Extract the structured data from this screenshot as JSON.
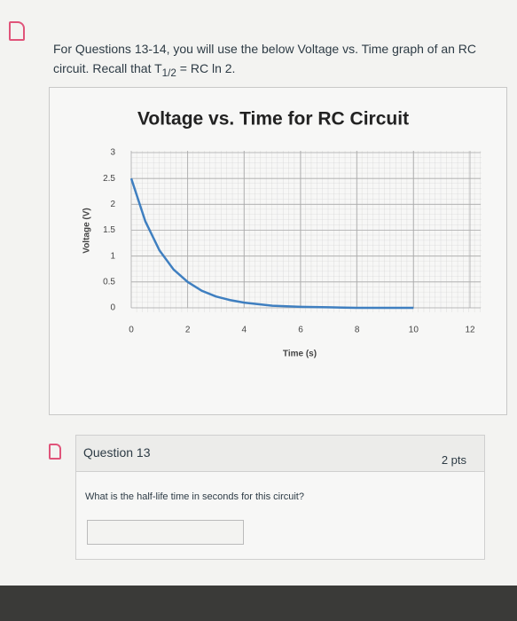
{
  "intro": {
    "text": "For Questions 13-14, you will use the below Voltage vs. Time graph of an RC circuit. Recall that T",
    "subscript": "1/2",
    "rest": "= RC ln 2."
  },
  "chart_data": {
    "type": "line",
    "title": "Voltage vs. Time for RC Circuit",
    "x_label": "Time (s)",
    "y_label": "Voltage (V)",
    "x": [
      0,
      0.5,
      1,
      1.5,
      2,
      2.5,
      3,
      3.5,
      4,
      5,
      6,
      7,
      8,
      9,
      10
    ],
    "series": [
      {
        "name": "Voltage",
        "color": "#3f7fc0",
        "values": [
          2.5,
          1.67,
          1.11,
          0.74,
          0.5,
          0.33,
          0.22,
          0.15,
          0.1,
          0.04,
          0.02,
          0.01,
          0,
          0,
          0
        ]
      }
    ],
    "xlim": [
      0,
      12
    ],
    "xticks": [
      0,
      2,
      4,
      6,
      8,
      10,
      12
    ],
    "ylim": [
      0,
      3
    ],
    "yticks": [
      0,
      0.5,
      1,
      1.5,
      2,
      2.5,
      3
    ],
    "grid": true
  },
  "question": {
    "title": "Question 13",
    "points": "2 pts",
    "prompt": "What is the half-life time in seconds for this circuit?"
  }
}
